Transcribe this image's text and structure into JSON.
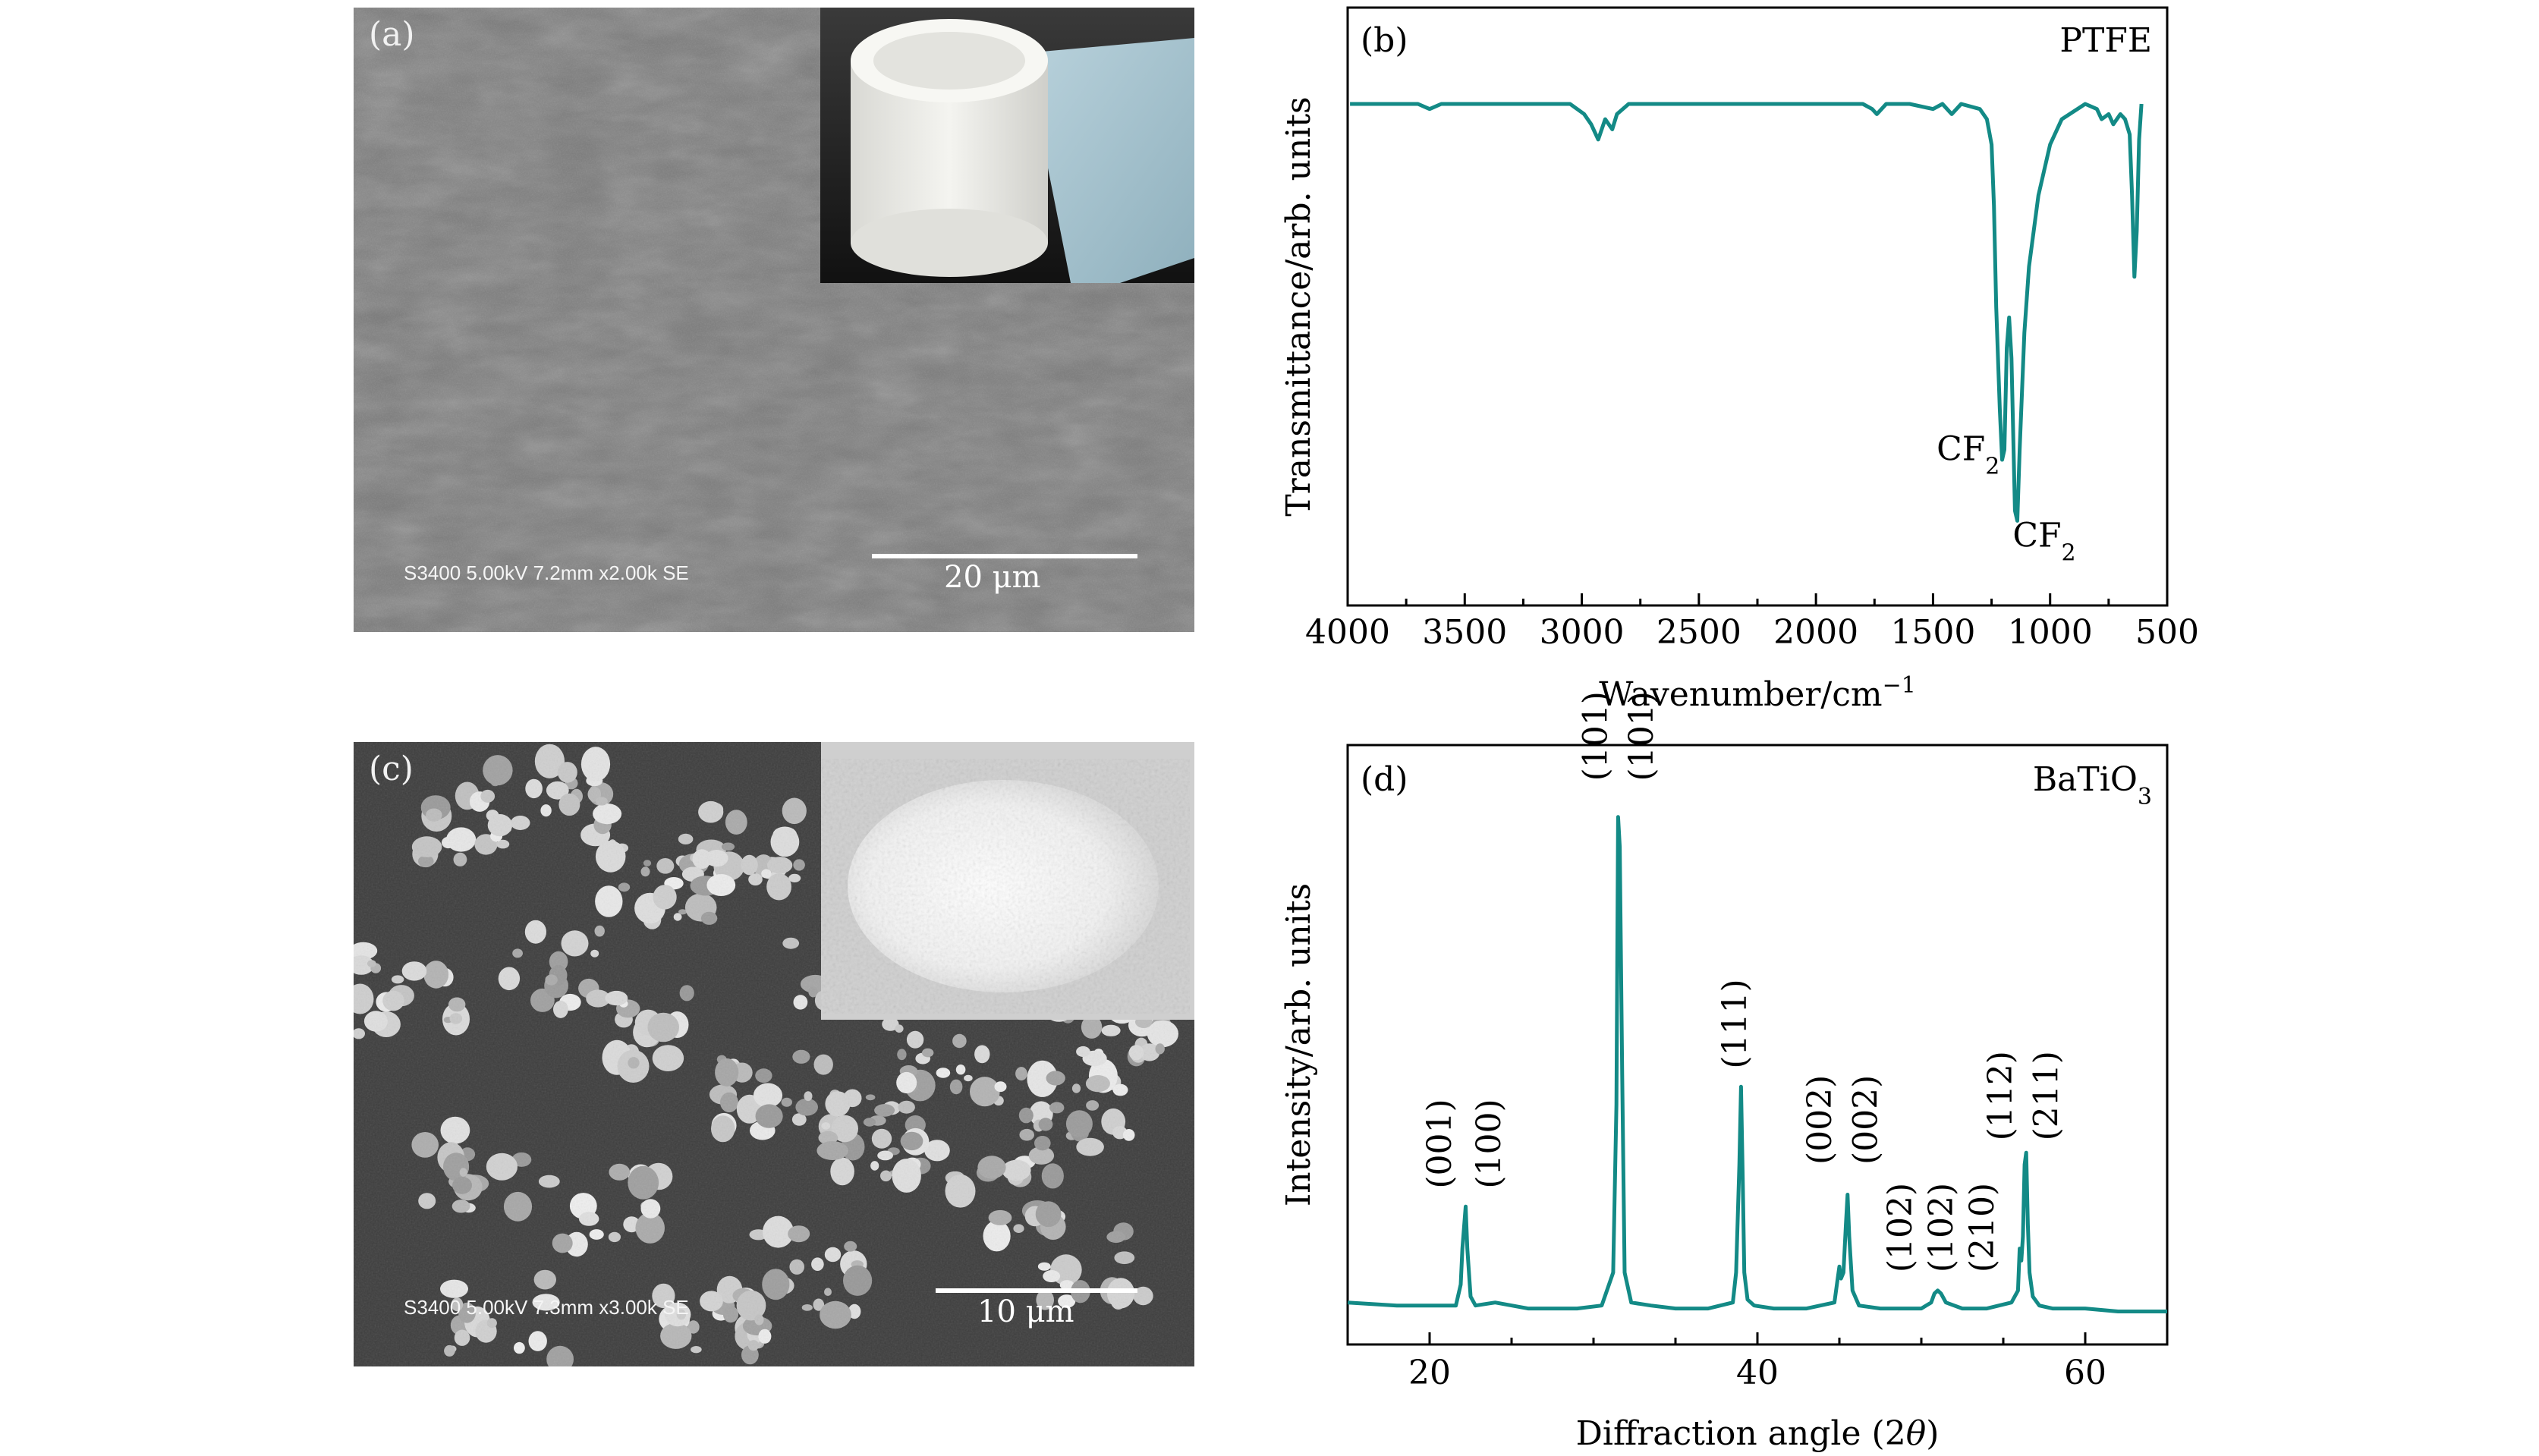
{
  "panel_a": {
    "label": "(a)",
    "instrument_text": "S3400 5.00kV 7.2mm x2.00k SE",
    "scale_text": "20 μm"
  },
  "panel_c": {
    "label": "(c)",
    "instrument_text": "S3400 5.00kV 7.3mm x3.00k SE",
    "scale_text": "10 μm"
  },
  "colors": {
    "line": "#138a86",
    "axis": "#000000",
    "sem_bg_a": "#7c7c7c",
    "sem_bg_c": "#3e3e3e"
  },
  "chart_data": [
    {
      "type": "line",
      "panel_label": "(b)",
      "title": "PTFE",
      "xlabel_main": "Wavenumber/cm",
      "xlabel_sup": "−1",
      "ylabel": "Transmittance/arb. units",
      "xlim": [
        4000,
        500
      ],
      "x_reversed": true,
      "ylim": [
        0,
        1
      ],
      "xticks": [
        "4000",
        "3500",
        "3000",
        "2500",
        "2000",
        "1500",
        "1000",
        "500"
      ],
      "grid": false,
      "series": [
        {
          "x": [
            3990,
            3700,
            3650,
            3600,
            3050,
            2990,
            2960,
            2930,
            2900,
            2870,
            2850,
            2800,
            2700,
            2200,
            1800,
            1760,
            1740,
            1700,
            1600,
            1500,
            1460,
            1420,
            1380,
            1300,
            1270,
            1250,
            1240,
            1230,
            1215,
            1205,
            1195,
            1185,
            1175,
            1165,
            1150,
            1140,
            1130,
            1110,
            1090,
            1050,
            1000,
            950,
            850,
            800,
            780,
            750,
            730,
            700,
            680,
            660,
            650,
            640,
            630,
            620,
            610
          ],
          "y": [
            0.9,
            0.9,
            0.89,
            0.9,
            0.9,
            0.88,
            0.86,
            0.83,
            0.87,
            0.85,
            0.88,
            0.9,
            0.9,
            0.9,
            0.9,
            0.89,
            0.88,
            0.9,
            0.9,
            0.89,
            0.9,
            0.88,
            0.9,
            0.89,
            0.87,
            0.82,
            0.7,
            0.5,
            0.3,
            0.2,
            0.22,
            0.42,
            0.48,
            0.4,
            0.1,
            0.08,
            0.22,
            0.45,
            0.58,
            0.72,
            0.82,
            0.87,
            0.9,
            0.89,
            0.87,
            0.88,
            0.86,
            0.88,
            0.87,
            0.84,
            0.72,
            0.56,
            0.65,
            0.83,
            0.9
          ]
        }
      ],
      "annotations": [
        {
          "text": "CF",
          "sub": "2",
          "x": 1215,
          "y": 0.22,
          "align": "end"
        },
        {
          "text": "CF",
          "sub": "2",
          "x": 1160,
          "y": 0.05,
          "align": "start"
        }
      ]
    },
    {
      "type": "line",
      "panel_label": "(d)",
      "title_main": "BaTiO",
      "title_sub": "3",
      "xlabel_main": "Diffraction angle (2",
      "xlabel_theta": "θ",
      "xlabel_end": ")",
      "ylabel": "Intensity/arb. units",
      "xlim": [
        15,
        65
      ],
      "ylim": [
        0,
        1
      ],
      "xticks": [
        20,
        40,
        60
      ],
      "grid": false,
      "series": [
        {
          "x": [
            15,
            18,
            21.6,
            21.9,
            22.0,
            22.2,
            22.3,
            22.5,
            22.8,
            24,
            26,
            29,
            30.5,
            31.2,
            31.4,
            31.5,
            31.6,
            31.75,
            31.9,
            32.3,
            33.5,
            35,
            37,
            38.5,
            38.7,
            38.9,
            39.0,
            39.1,
            39.2,
            39.4,
            39.8,
            41,
            43,
            44.7,
            44.9,
            45.0,
            45.1,
            45.25,
            45.4,
            45.5,
            45.6,
            45.8,
            46.2,
            47.5,
            50,
            50.6,
            50.8,
            51.0,
            51.2,
            51.5,
            52.5,
            54,
            55.5,
            55.9,
            56.0,
            56.1,
            56.2,
            56.3,
            56.4,
            56.5,
            56.6,
            56.8,
            57.2,
            58,
            60,
            62,
            65
          ],
          "y": [
            0.07,
            0.065,
            0.065,
            0.1,
            0.16,
            0.23,
            0.16,
            0.08,
            0.065,
            0.07,
            0.06,
            0.06,
            0.065,
            0.12,
            0.4,
            0.88,
            0.83,
            0.45,
            0.12,
            0.07,
            0.065,
            0.06,
            0.06,
            0.07,
            0.12,
            0.3,
            0.43,
            0.28,
            0.12,
            0.075,
            0.065,
            0.06,
            0.06,
            0.07,
            0.11,
            0.13,
            0.11,
            0.12,
            0.2,
            0.25,
            0.18,
            0.09,
            0.065,
            0.06,
            0.06,
            0.07,
            0.085,
            0.09,
            0.085,
            0.07,
            0.06,
            0.06,
            0.07,
            0.09,
            0.16,
            0.14,
            0.18,
            0.3,
            0.32,
            0.2,
            0.12,
            0.08,
            0.065,
            0.06,
            0.06,
            0.055,
            0.055
          ]
        }
      ],
      "peak_labels": [
        {
          "text": "(001)",
          "x": 21.3,
          "y": 0.26
        },
        {
          "text": "(100)",
          "x": 24.3,
          "y": 0.26
        },
        {
          "text": "(101)",
          "x": 30.8,
          "y": 0.94
        },
        {
          "text": "(101)",
          "x": 33.6,
          "y": 0.94
        },
        {
          "text": "(111)",
          "x": 39.3,
          "y": 0.46
        },
        {
          "text": "(002)",
          "x": 44.5,
          "y": 0.3
        },
        {
          "text": "(002)",
          "x": 47.3,
          "y": 0.3
        },
        {
          "text": "(102)",
          "x": 49.4,
          "y": 0.12
        },
        {
          "text": "(102)",
          "x": 51.9,
          "y": 0.12
        },
        {
          "text": "(210)",
          "x": 54.4,
          "y": 0.12
        },
        {
          "text": "(112)",
          "x": 55.5,
          "y": 0.34
        },
        {
          "text": "(211)",
          "x": 58.3,
          "y": 0.34
        }
      ]
    }
  ]
}
